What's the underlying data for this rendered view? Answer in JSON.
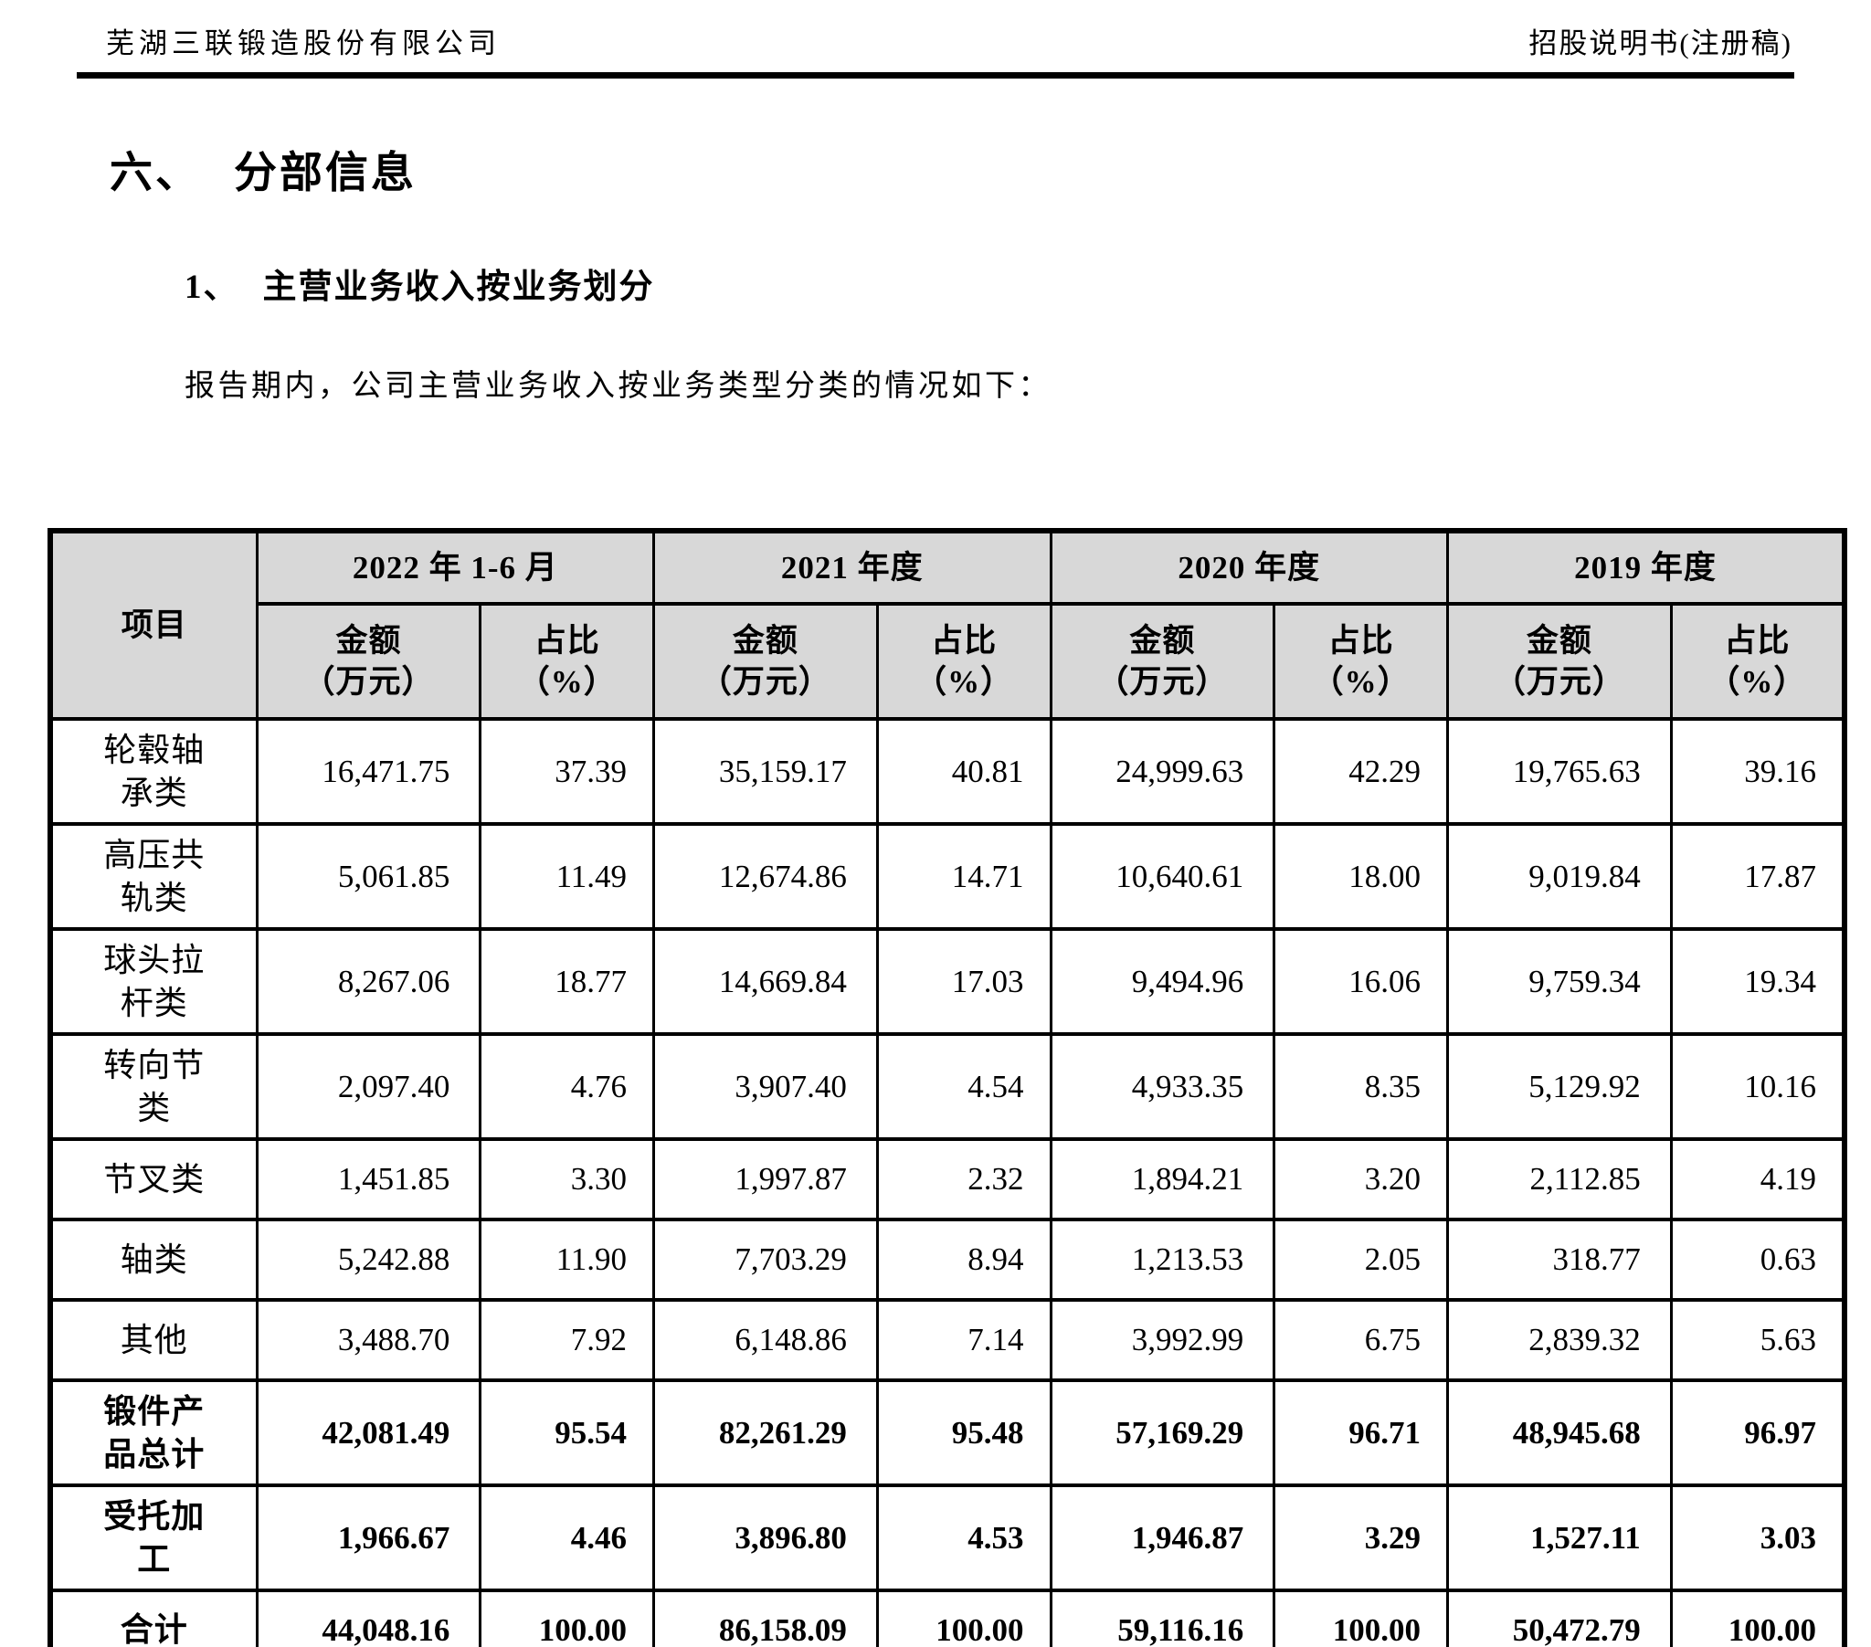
{
  "page": {
    "header_left": "芜湖三联锻造股份有限公司",
    "header_right": "招股说明书(注册稿)"
  },
  "section": {
    "no": "六、",
    "title": "分部信息"
  },
  "subsection": {
    "no": "1、",
    "title": "主营业务收入按业务划分"
  },
  "intro": "报告期内，公司主营业务收入按业务类型分类的情况如下：",
  "colors": {
    "header_bg": "#d8d8d8",
    "text": "#000000"
  },
  "table": {
    "corner_header": "项目",
    "amount_header": "金额\n（万元）",
    "ratio_header": "占比\n（%）",
    "periods": [
      "2022 年 1-6 月",
      "2021 年度",
      "2020 年度",
      "2019 年度"
    ],
    "rows": [
      {
        "label": "轮毂轴\n承类",
        "bold": false,
        "values": [
          "16,471.75",
          "37.39",
          "35,159.17",
          "40.81",
          "24,999.63",
          "42.29",
          "19,765.63",
          "39.16"
        ]
      },
      {
        "label": "高压共\n轨类",
        "bold": false,
        "values": [
          "5,061.85",
          "11.49",
          "12,674.86",
          "14.71",
          "10,640.61",
          "18.00",
          "9,019.84",
          "17.87"
        ]
      },
      {
        "label": "球头拉\n杆类",
        "bold": false,
        "values": [
          "8,267.06",
          "18.77",
          "14,669.84",
          "17.03",
          "9,494.96",
          "16.06",
          "9,759.34",
          "19.34"
        ]
      },
      {
        "label": "转向节\n类",
        "bold": false,
        "values": [
          "2,097.40",
          "4.76",
          "3,907.40",
          "4.54",
          "4,933.35",
          "8.35",
          "5,129.92",
          "10.16"
        ]
      },
      {
        "label": "节叉类",
        "bold": false,
        "values": [
          "1,451.85",
          "3.30",
          "1,997.87",
          "2.32",
          "1,894.21",
          "3.20",
          "2,112.85",
          "4.19"
        ]
      },
      {
        "label": "轴类",
        "bold": false,
        "values": [
          "5,242.88",
          "11.90",
          "7,703.29",
          "8.94",
          "1,213.53",
          "2.05",
          "318.77",
          "0.63"
        ]
      },
      {
        "label": "其他",
        "bold": false,
        "values": [
          "3,488.70",
          "7.92",
          "6,148.86",
          "7.14",
          "3,992.99",
          "6.75",
          "2,839.32",
          "5.63"
        ]
      },
      {
        "label": "锻件产\n品总计",
        "bold": true,
        "values": [
          "42,081.49",
          "95.54",
          "82,261.29",
          "95.48",
          "57,169.29",
          "96.71",
          "48,945.68",
          "96.97"
        ]
      },
      {
        "label": "受托加\n工",
        "bold": true,
        "values": [
          "1,966.67",
          "4.46",
          "3,896.80",
          "4.53",
          "1,946.87",
          "3.29",
          "1,527.11",
          "3.03"
        ]
      },
      {
        "label": "合计",
        "bold": true,
        "values": [
          "44,048.16",
          "100.00",
          "86,158.09",
          "100.00",
          "59,116.16",
          "100.00",
          "50,472.79",
          "100.00"
        ]
      }
    ]
  }
}
